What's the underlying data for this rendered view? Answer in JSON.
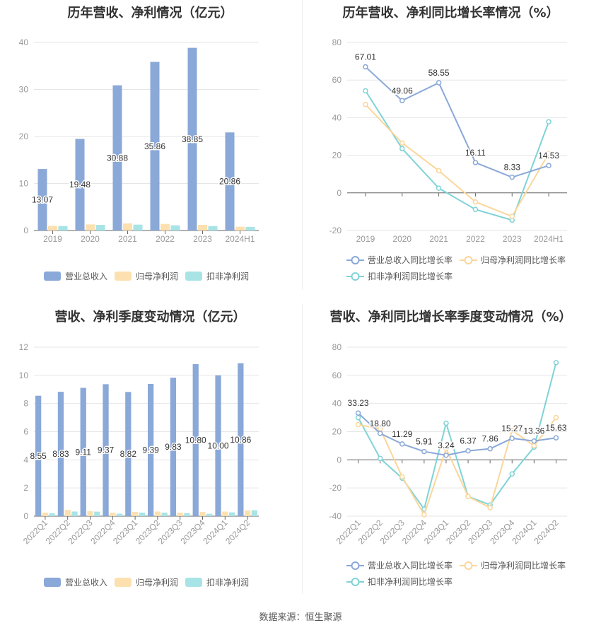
{
  "source": "数据来源：恒生聚源",
  "colors": {
    "revenue": "#8aa8d8",
    "parent": "#fde0b0",
    "deducted": "#a8e4e6",
    "rev_line": "#8aa8d8",
    "parent_line": "#fbd69a",
    "ded_line": "#7fd3d6"
  },
  "chart_data": [
    {
      "type": "bar",
      "title": "历年营收、净利情况（亿元）",
      "categories": [
        "2019",
        "2020",
        "2021",
        "2022",
        "2023",
        "2024H1"
      ],
      "ylim": [
        0,
        40
      ],
      "yticks": [
        0,
        10,
        20,
        30,
        40
      ],
      "grid": true,
      "legend": "bottom",
      "series": [
        {
          "name": "营业总收入",
          "values": [
            13.07,
            19.48,
            30.88,
            35.86,
            38.85,
            20.86
          ],
          "labels": [
            "13.07",
            "19.48",
            "30.88",
            "35.86",
            "38.85",
            "20.86"
          ]
        },
        {
          "name": "归母净利润",
          "values": [
            1.0,
            1.3,
            1.5,
            1.4,
            1.2,
            0.8
          ]
        },
        {
          "name": "扣非净利润",
          "values": [
            0.95,
            1.2,
            1.25,
            1.1,
            0.95,
            0.75
          ]
        }
      ]
    },
    {
      "type": "line",
      "title": "历年营收、净利同比增长率情况（%）",
      "categories": [
        "2019",
        "2020",
        "2021",
        "2022",
        "2023",
        "2024H1"
      ],
      "ylim": [
        -20,
        80
      ],
      "yticks": [
        -20,
        0,
        20,
        40,
        60,
        80
      ],
      "grid": true,
      "legend": "bottom",
      "series": [
        {
          "name": "营业总收入同比增长率",
          "values": [
            67.01,
            49.06,
            58.55,
            16.11,
            8.33,
            14.53
          ],
          "labels": [
            "67.01",
            "49.06",
            "58.55",
            "16.11",
            "8.33",
            "14.53"
          ]
        },
        {
          "name": "归母净利润同比增长率",
          "values": [
            47,
            26.5,
            11.8,
            -4.8,
            -12.5,
            21
          ]
        },
        {
          "name": "扣非净利润同比增长率",
          "values": [
            54.3,
            23.5,
            2.5,
            -8.8,
            -14.5,
            37.8
          ]
        }
      ]
    },
    {
      "type": "bar",
      "title": "营收、净利季度变动情况（亿元）",
      "categories": [
        "2022Q1",
        "2022Q2",
        "2022Q3",
        "2022Q4",
        "2023Q1",
        "2023Q2",
        "2023Q3",
        "2023Q4",
        "2024Q1",
        "2024Q2"
      ],
      "ylim": [
        0,
        12
      ],
      "yticks": [
        0,
        2,
        4,
        6,
        8,
        10,
        12
      ],
      "grid": true,
      "legend": "bottom",
      "series": [
        {
          "name": "营业总收入",
          "values": [
            8.55,
            8.83,
            9.11,
            9.37,
            8.82,
            9.39,
            9.83,
            10.8,
            10.0,
            10.86
          ],
          "labels": [
            "8.55",
            "8.83",
            "9.11",
            "9.37",
            "8.82",
            "9.39",
            "9.83",
            "10.80",
            "10.00",
            "10.86"
          ]
        },
        {
          "name": "归母净利润",
          "values": [
            0.25,
            0.45,
            0.35,
            0.25,
            0.3,
            0.33,
            0.25,
            0.3,
            0.33,
            0.4
          ]
        },
        {
          "name": "扣非净利润",
          "values": [
            0.2,
            0.33,
            0.32,
            0.18,
            0.25,
            0.25,
            0.22,
            0.17,
            0.27,
            0.42
          ]
        }
      ]
    },
    {
      "type": "line",
      "title": "营收、净利同比增长率季度变动情况（%）",
      "categories": [
        "2022Q1",
        "2022Q2",
        "2022Q3",
        "2022Q4",
        "2023Q1",
        "2023Q2",
        "2023Q3",
        "2023Q4",
        "2024Q1",
        "2024Q2"
      ],
      "ylim": [
        -40,
        80
      ],
      "yticks": [
        -40,
        -20,
        0,
        20,
        40,
        60,
        80
      ],
      "grid": true,
      "legend": "bottom",
      "series": [
        {
          "name": "营业总收入同比增长率",
          "values": [
            33.23,
            18.8,
            11.29,
            5.91,
            3.24,
            6.37,
            7.86,
            15.27,
            13.36,
            15.63
          ],
          "labels": [
            "33.23",
            "18.80",
            "11.29",
            "5.91",
            "3.24",
            "6.37",
            "7.86",
            "15.27",
            "13.36",
            "15.63"
          ]
        },
        {
          "name": "归母净利润同比增长率",
          "values": [
            25,
            22,
            -12,
            -39,
            8,
            -26,
            -34,
            21,
            10,
            30
          ]
        },
        {
          "name": "扣非净利润同比增长率",
          "values": [
            30,
            1,
            -13,
            -35,
            26,
            -26,
            -32,
            -10,
            9,
            69
          ]
        }
      ]
    }
  ]
}
